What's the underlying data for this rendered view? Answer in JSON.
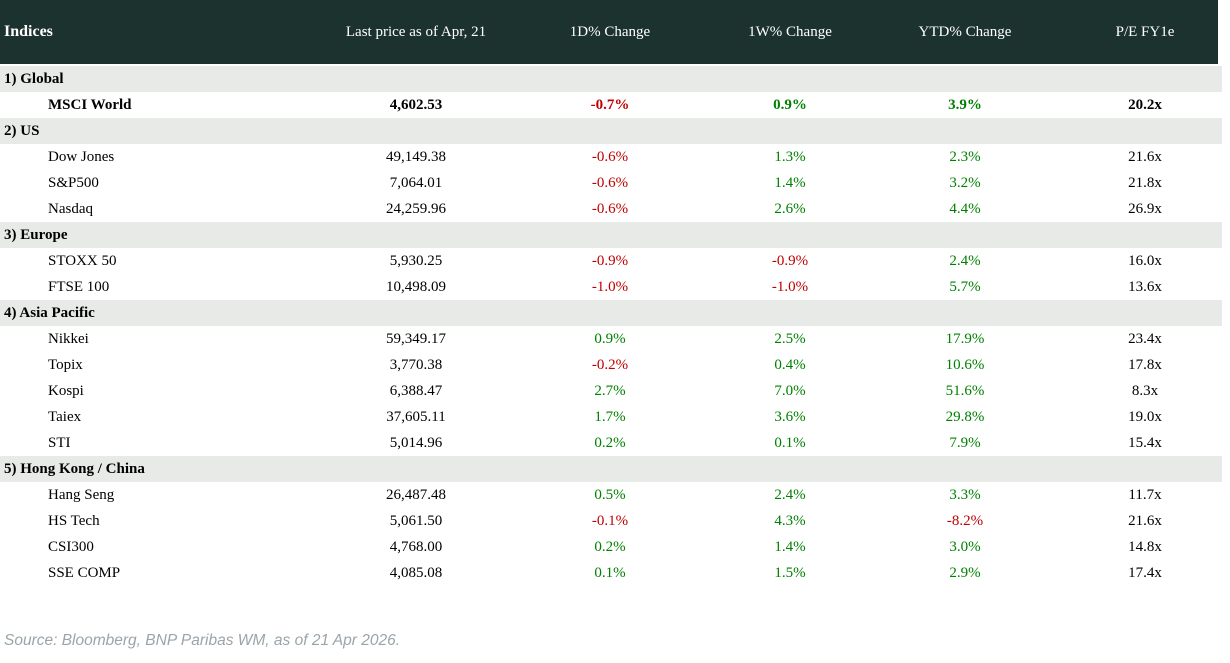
{
  "chart_data": {
    "type": "table",
    "title": "Indices",
    "columns": [
      "Indices",
      "Last price as of Apr, 21",
      "1D% Change",
      "1W% Change",
      "YTD% Change",
      "P/E FY1e"
    ],
    "sections": [
      {
        "label": "1) Global",
        "rows": [
          {
            "name": "MSCI World",
            "bold": true,
            "price": "4,602.53",
            "d1": "-0.7%",
            "w1": "0.9%",
            "ytd": "3.9%",
            "pe": "20.2x"
          }
        ]
      },
      {
        "label": "2) US",
        "rows": [
          {
            "name": "Dow Jones",
            "bold": false,
            "price": "49,149.38",
            "d1": "-0.6%",
            "w1": "1.3%",
            "ytd": "2.3%",
            "pe": "21.6x"
          },
          {
            "name": "S&P500",
            "bold": false,
            "price": "7,064.01",
            "d1": "-0.6%",
            "w1": "1.4%",
            "ytd": "3.2%",
            "pe": "21.8x"
          },
          {
            "name": "Nasdaq",
            "bold": false,
            "price": "24,259.96",
            "d1": "-0.6%",
            "w1": "2.6%",
            "ytd": "4.4%",
            "pe": "26.9x"
          }
        ]
      },
      {
        "label": "3) Europe",
        "rows": [
          {
            "name": "STOXX 50",
            "bold": false,
            "price": "5,930.25",
            "d1": "-0.9%",
            "w1": "-0.9%",
            "ytd": "2.4%",
            "pe": "16.0x"
          },
          {
            "name": "FTSE 100",
            "bold": false,
            "price": "10,498.09",
            "d1": "-1.0%",
            "w1": "-1.0%",
            "ytd": "5.7%",
            "pe": "13.6x"
          }
        ]
      },
      {
        "label": "4) Asia Pacific",
        "rows": [
          {
            "name": "Nikkei",
            "bold": false,
            "price": "59,349.17",
            "d1": "0.9%",
            "w1": "2.5%",
            "ytd": "17.9%",
            "pe": "23.4x"
          },
          {
            "name": "Topix",
            "bold": false,
            "price": "3,770.38",
            "d1": "-0.2%",
            "w1": "0.4%",
            "ytd": "10.6%",
            "pe": "17.8x"
          },
          {
            "name": "Kospi",
            "bold": false,
            "price": "6,388.47",
            "d1": "2.7%",
            "w1": "7.0%",
            "ytd": "51.6%",
            "pe": "8.3x"
          },
          {
            "name": "Taiex",
            "bold": false,
            "price": "37,605.11",
            "d1": "1.7%",
            "w1": "3.6%",
            "ytd": "29.8%",
            "pe": "19.0x"
          },
          {
            "name": "STI",
            "bold": false,
            "price": "5,014.96",
            "d1": "0.2%",
            "w1": "0.1%",
            "ytd": "7.9%",
            "pe": "15.4x"
          }
        ]
      },
      {
        "label": "5) Hong Kong / China",
        "rows": [
          {
            "name": "Hang Seng",
            "bold": false,
            "price": "26,487.48",
            "d1": "0.5%",
            "w1": "2.4%",
            "ytd": "3.3%",
            "pe": "11.7x"
          },
          {
            "name": "HS Tech",
            "bold": false,
            "price": "5,061.50",
            "d1": "-0.1%",
            "w1": "4.3%",
            "ytd": "-8.2%",
            "pe": "21.6x"
          },
          {
            "name": "CSI300",
            "bold": false,
            "price": "4,768.00",
            "d1": "0.2%",
            "w1": "1.4%",
            "ytd": "3.0%",
            "pe": "14.8x"
          },
          {
            "name": "SSE COMP",
            "bold": false,
            "price": "4,085.08",
            "d1": "0.1%",
            "w1": "1.5%",
            "ytd": "2.9%",
            "pe": "17.4x"
          }
        ]
      }
    ]
  },
  "footer": {
    "source": "Source: Bloomberg, BNP Paribas WM, as of 21 Apr 2026."
  },
  "colors": {
    "header_bg": "#1c322e",
    "section_bg": "#e7eae6",
    "negative": "#c00000",
    "positive": "#008000",
    "footer_text": "#9ba4a9"
  }
}
